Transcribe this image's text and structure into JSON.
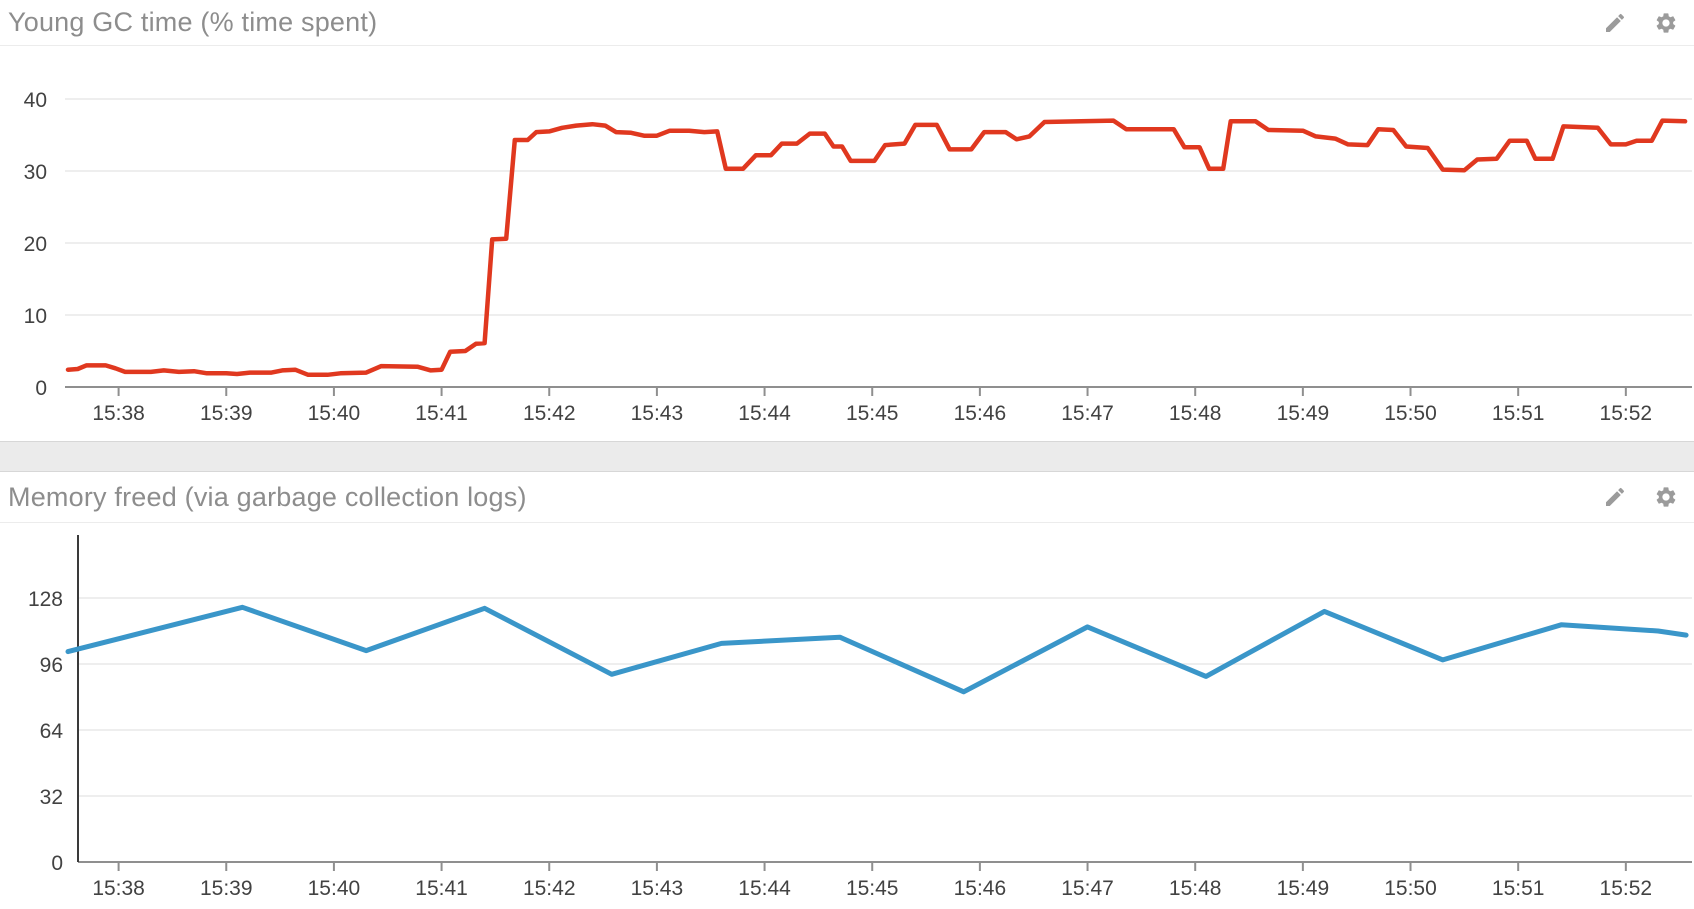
{
  "colors": {
    "red_series": "#e0381f",
    "blue_series": "#3a96c9",
    "title_text": "#8d8d8d",
    "tick_text": "#424242",
    "gridline": "#e4e4e4",
    "axis_line": "#8f8f8f",
    "y_axis_line_dark": "#3a3a3a",
    "icon_gray": "#9b9b9b",
    "panel_bg": "#ffffff",
    "page_gap_bg": "#ebebeb"
  },
  "panels": [
    {
      "title": "Young GC time (% time spent)",
      "icons": [
        {
          "name": "edit-pencil-icon"
        },
        {
          "name": "settings-gear-icon"
        }
      ],
      "chart_data": {
        "type": "line",
        "title": "Young GC time (% time spent)",
        "xlabel": "",
        "ylabel": "",
        "legend": "none",
        "grid": true,
        "ylim": [
          0,
          41
        ],
        "xlim_minutes_after_1500": [
          37.5,
          52.6
        ],
        "y_ticks": [
          0,
          10,
          20,
          30,
          40
        ],
        "x_ticks": [
          "15:38",
          "15:39",
          "15:40",
          "15:41",
          "15:42",
          "15:43",
          "15:44",
          "15:45",
          "15:46",
          "15:47",
          "15:48",
          "15:49",
          "15:50",
          "15:51",
          "15:52"
        ],
        "x_tick_minutes": [
          38,
          39,
          40,
          41,
          42,
          43,
          44,
          45,
          46,
          47,
          48,
          49,
          50,
          51,
          52
        ],
        "series": [
          {
            "name": "young-gc-time-percent",
            "color": "#e0381f",
            "stroke_width": 4.5,
            "x_unit": "minutes_after_15:00",
            "points": [
              [
                37.53,
                2.4
              ],
              [
                37.62,
                2.5
              ],
              [
                37.7,
                3.0
              ],
              [
                37.88,
                3.0
              ],
              [
                37.97,
                2.6
              ],
              [
                38.06,
                2.1
              ],
              [
                38.3,
                2.1
              ],
              [
                38.42,
                2.3
              ],
              [
                38.56,
                2.1
              ],
              [
                38.7,
                2.2
              ],
              [
                38.82,
                1.9
              ],
              [
                39.0,
                1.9
              ],
              [
                39.1,
                1.8
              ],
              [
                39.22,
                2.0
              ],
              [
                39.42,
                2.0
              ],
              [
                39.52,
                2.3
              ],
              [
                39.64,
                2.4
              ],
              [
                39.76,
                1.7
              ],
              [
                39.94,
                1.7
              ],
              [
                40.06,
                1.9
              ],
              [
                40.3,
                2.0
              ],
              [
                40.44,
                2.9
              ],
              [
                40.78,
                2.8
              ],
              [
                40.9,
                2.3
              ],
              [
                41.0,
                2.4
              ],
              [
                41.08,
                4.9
              ],
              [
                41.22,
                5.0
              ],
              [
                41.32,
                6.0
              ],
              [
                41.4,
                6.1
              ],
              [
                41.47,
                20.5
              ],
              [
                41.6,
                20.6
              ],
              [
                41.68,
                34.3
              ],
              [
                41.8,
                34.3
              ],
              [
                41.88,
                35.4
              ],
              [
                42.0,
                35.5
              ],
              [
                42.12,
                36.0
              ],
              [
                42.25,
                36.3
              ],
              [
                42.4,
                36.5
              ],
              [
                42.52,
                36.3
              ],
              [
                42.62,
                35.4
              ],
              [
                42.76,
                35.3
              ],
              [
                42.88,
                34.9
              ],
              [
                43.0,
                34.9
              ],
              [
                43.12,
                35.6
              ],
              [
                43.3,
                35.6
              ],
              [
                43.44,
                35.4
              ],
              [
                43.56,
                35.5
              ],
              [
                43.64,
                30.3
              ],
              [
                43.8,
                30.3
              ],
              [
                43.92,
                32.2
              ],
              [
                44.06,
                32.2
              ],
              [
                44.16,
                33.8
              ],
              [
                44.3,
                33.8
              ],
              [
                44.42,
                35.2
              ],
              [
                44.56,
                35.2
              ],
              [
                44.64,
                33.4
              ],
              [
                44.72,
                33.4
              ],
              [
                44.8,
                31.4
              ],
              [
                45.02,
                31.4
              ],
              [
                45.12,
                33.6
              ],
              [
                45.3,
                33.8
              ],
              [
                45.4,
                36.4
              ],
              [
                45.6,
                36.4
              ],
              [
                45.72,
                33.0
              ],
              [
                45.92,
                33.0
              ],
              [
                46.04,
                35.4
              ],
              [
                46.24,
                35.4
              ],
              [
                46.34,
                34.4
              ],
              [
                46.46,
                34.8
              ],
              [
                46.6,
                36.8
              ],
              [
                46.94,
                36.9
              ],
              [
                47.24,
                37.0
              ],
              [
                47.36,
                35.8
              ],
              [
                47.8,
                35.8
              ],
              [
                47.9,
                33.3
              ],
              [
                48.04,
                33.3
              ],
              [
                48.13,
                30.3
              ],
              [
                48.26,
                30.3
              ],
              [
                48.33,
                36.9
              ],
              [
                48.56,
                36.9
              ],
              [
                48.68,
                35.7
              ],
              [
                49.0,
                35.6
              ],
              [
                49.12,
                34.8
              ],
              [
                49.3,
                34.5
              ],
              [
                49.42,
                33.7
              ],
              [
                49.6,
                33.6
              ],
              [
                49.7,
                35.8
              ],
              [
                49.84,
                35.7
              ],
              [
                49.96,
                33.4
              ],
              [
                50.16,
                33.2
              ],
              [
                50.3,
                30.2
              ],
              [
                50.5,
                30.1
              ],
              [
                50.62,
                31.6
              ],
              [
                50.8,
                31.7
              ],
              [
                50.92,
                34.2
              ],
              [
                51.08,
                34.2
              ],
              [
                51.16,
                31.7
              ],
              [
                51.32,
                31.7
              ],
              [
                51.42,
                36.2
              ],
              [
                51.74,
                36.0
              ],
              [
                51.86,
                33.7
              ],
              [
                52.0,
                33.7
              ],
              [
                52.1,
                34.2
              ],
              [
                52.24,
                34.2
              ],
              [
                52.34,
                37.0
              ],
              [
                52.55,
                36.9
              ]
            ]
          }
        ]
      }
    },
    {
      "title": "Memory freed (via garbage collection logs)",
      "icons": [
        {
          "name": "edit-pencil-icon"
        },
        {
          "name": "settings-gear-icon"
        }
      ],
      "chart_data": {
        "type": "line",
        "title": "Memory freed (via garbage collection logs)",
        "xlabel": "",
        "ylabel": "",
        "legend": "none",
        "grid": true,
        "ylim": [
          0,
          160
        ],
        "xlim_minutes_after_1500": [
          37.5,
          52.6
        ],
        "y_ticks": [
          0,
          32,
          64,
          96,
          128
        ],
        "x_ticks": [
          "15:38",
          "15:39",
          "15:40",
          "15:41",
          "15:42",
          "15:43",
          "15:44",
          "15:45",
          "15:46",
          "15:47",
          "15:48",
          "15:49",
          "15:50",
          "15:51",
          "15:52"
        ],
        "x_tick_minutes": [
          38,
          39,
          40,
          41,
          42,
          43,
          44,
          45,
          46,
          47,
          48,
          49,
          50,
          51,
          52
        ],
        "series": [
          {
            "name": "memory-freed",
            "color": "#3a96c9",
            "stroke_width": 5,
            "x_unit": "minutes_after_15:00",
            "points": [
              [
                37.53,
                102
              ],
              [
                39.15,
                123.5
              ],
              [
                40.3,
                102.5
              ],
              [
                41.4,
                123
              ],
              [
                42.58,
                91
              ],
              [
                43.6,
                106
              ],
              [
                44.7,
                109
              ],
              [
                45.85,
                82.5
              ],
              [
                47.0,
                114
              ],
              [
                48.1,
                90
              ],
              [
                49.2,
                121.5
              ],
              [
                50.3,
                98
              ],
              [
                51.4,
                115
              ],
              [
                52.3,
                112
              ],
              [
                52.56,
                110
              ]
            ]
          }
        ]
      }
    }
  ]
}
